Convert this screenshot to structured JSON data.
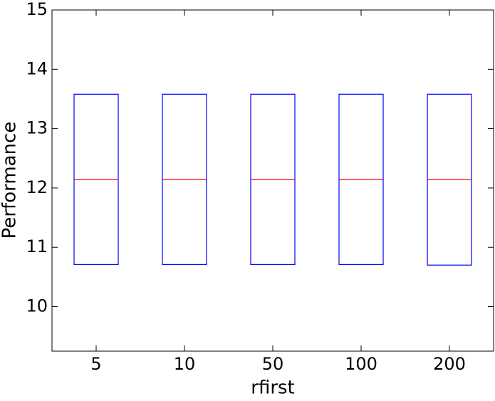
{
  "chart_data": {
    "type": "box",
    "xlabel": "rfirst",
    "ylabel": "Performance",
    "categories": [
      "5",
      "10",
      "50",
      "100",
      "200"
    ],
    "q1": [
      10.71,
      10.71,
      10.71,
      10.71,
      10.7
    ],
    "median": [
      12.14,
      12.14,
      12.14,
      12.14,
      12.14
    ],
    "q3": [
      13.58,
      13.58,
      13.58,
      13.58,
      13.58
    ],
    "box_color": "#0000ff",
    "median_color": "#ff0000",
    "ylim": [
      9.25,
      15
    ],
    "yticks": [
      10,
      11,
      12,
      13,
      14,
      15
    ],
    "grid": false
  }
}
